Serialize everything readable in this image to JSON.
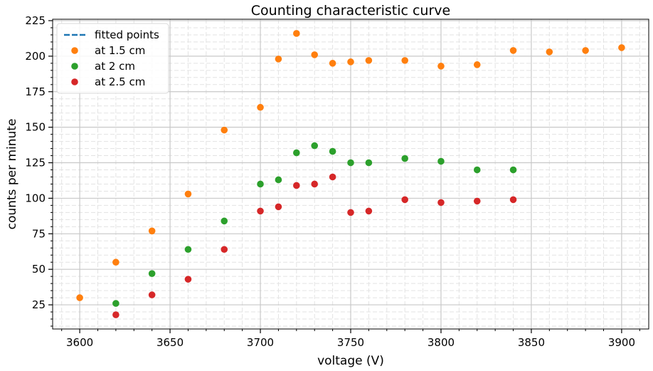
{
  "chart_data": {
    "type": "scatter",
    "title": "Counting characteristic curve",
    "xlabel": "voltage (V)",
    "ylabel": "counts per minute",
    "xlim": [
      3585,
      3915
    ],
    "ylim": [
      8,
      226
    ],
    "xticks": [
      3600,
      3650,
      3700,
      3750,
      3800,
      3850,
      3900
    ],
    "yticks": [
      25,
      50,
      75,
      100,
      125,
      150,
      175,
      200,
      225
    ],
    "grid": true,
    "legend_position": "top-left",
    "series": [
      {
        "name": "fitted points",
        "kind": "line",
        "style": "dashed",
        "color": "#1f77b4",
        "x": [],
        "y": []
      },
      {
        "name": "at 1.5 cm",
        "kind": "scatter",
        "color": "#ff7f0e",
        "x": [
          3600,
          3620,
          3640,
          3660,
          3680,
          3700,
          3710,
          3720,
          3730,
          3740,
          3750,
          3760,
          3780,
          3800,
          3820,
          3840,
          3860,
          3880,
          3900
        ],
        "y": [
          30,
          55,
          77,
          103,
          148,
          164,
          198,
          216,
          201,
          195,
          196,
          197,
          197,
          193,
          194,
          204,
          203,
          204,
          206
        ]
      },
      {
        "name": "at 2 cm",
        "kind": "scatter",
        "color": "#2ca02c",
        "x": [
          3620,
          3640,
          3660,
          3680,
          3700,
          3710,
          3720,
          3730,
          3740,
          3750,
          3760,
          3780,
          3800,
          3820,
          3840
        ],
        "y": [
          26,
          47,
          64,
          84,
          110,
          113,
          132,
          137,
          133,
          125,
          125,
          128,
          126,
          120,
          120
        ]
      },
      {
        "name": "at 2.5 cm",
        "kind": "scatter",
        "color": "#d62728",
        "x": [
          3620,
          3640,
          3660,
          3680,
          3700,
          3710,
          3720,
          3730,
          3740,
          3750,
          3760,
          3780,
          3800,
          3820,
          3840
        ],
        "y": [
          18,
          32,
          43,
          64,
          91,
          94,
          109,
          110,
          115,
          90,
          91,
          99,
          97,
          98,
          99
        ]
      }
    ]
  }
}
